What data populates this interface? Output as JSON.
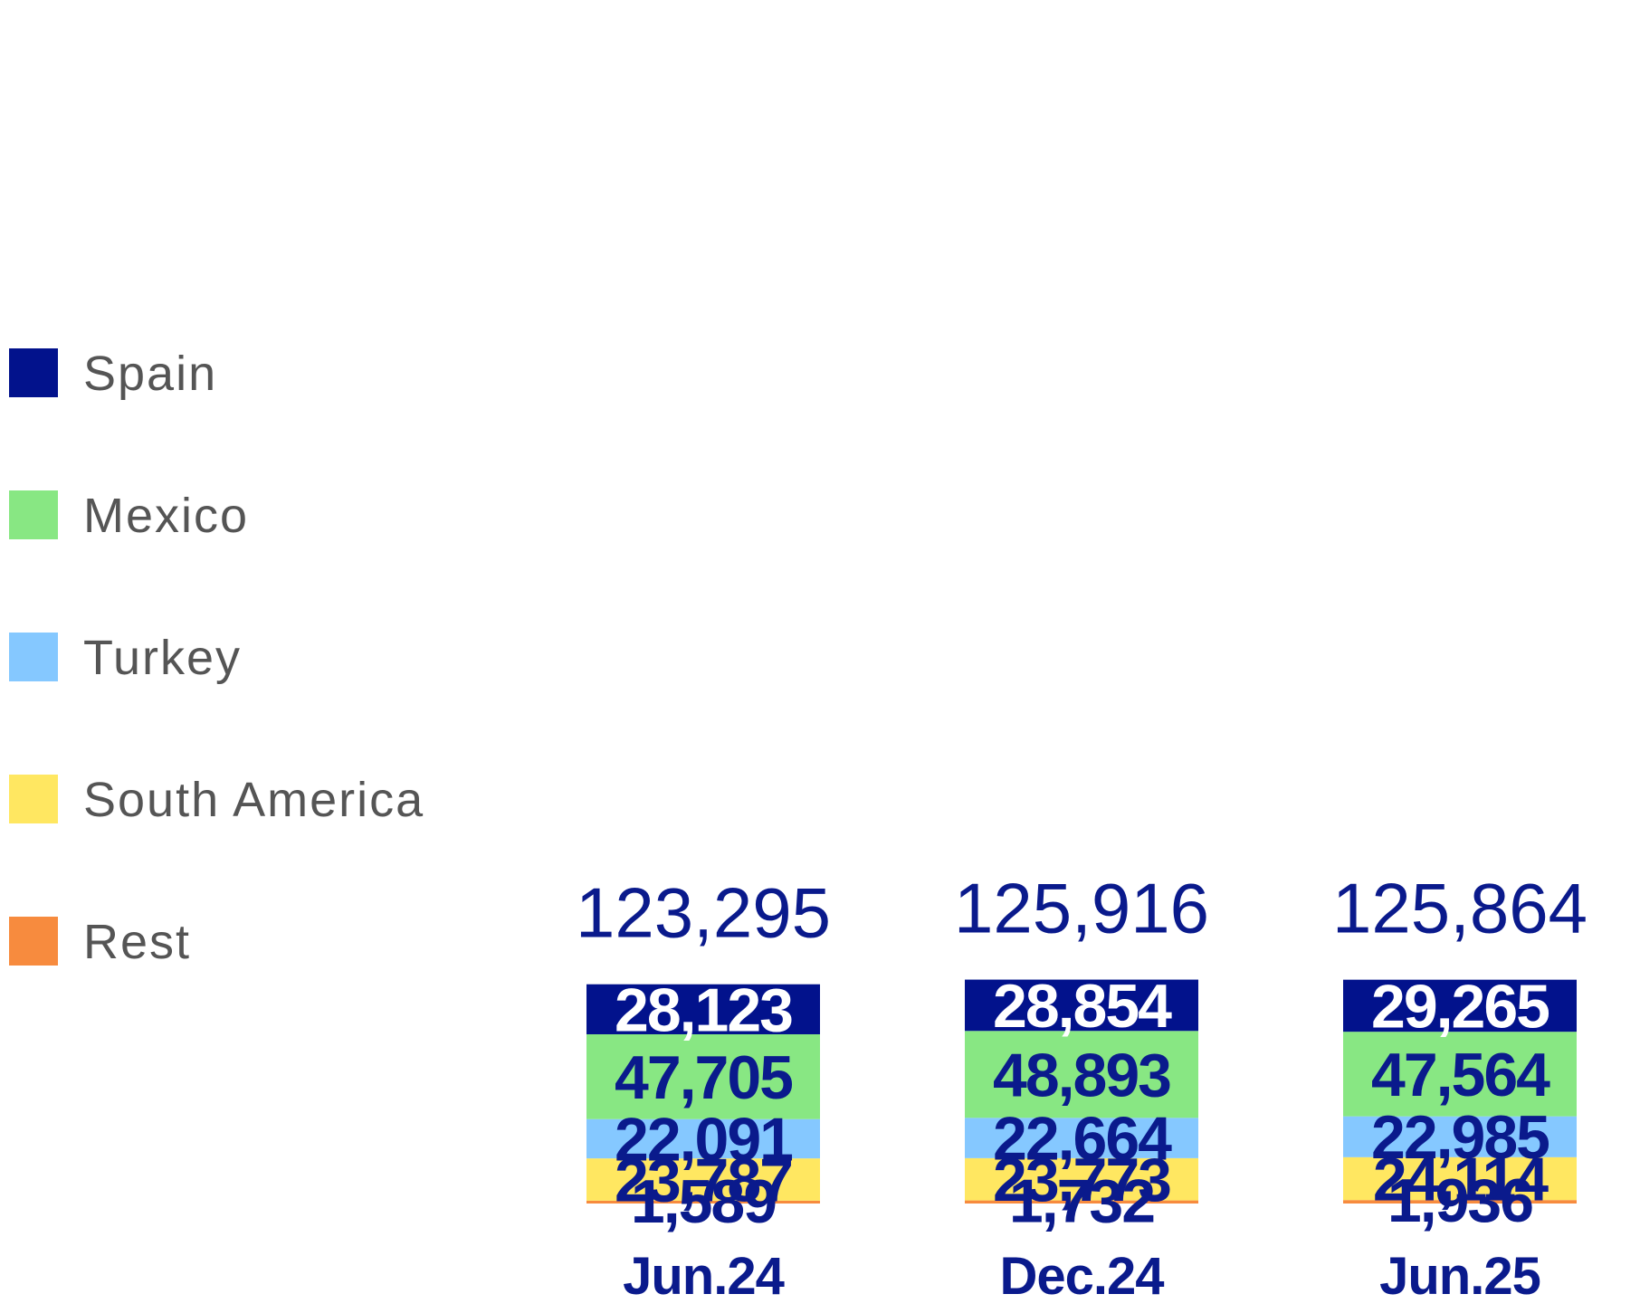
{
  "chart_data": {
    "type": "bar",
    "stacked": true,
    "categories": [
      "Jun.24",
      "Dec.24",
      "Jun.25"
    ],
    "totals": [
      "123,295",
      "125,916",
      "125,864"
    ],
    "series": [
      {
        "name": "Spain",
        "color": "#02128c",
        "label_color": "#ffffff",
        "values": [
          28123,
          28854,
          29265
        ],
        "labels": [
          "28,123",
          "28,854",
          "29,265"
        ]
      },
      {
        "name": "Mexico",
        "color": "#88e783",
        "label_color": "#0a1a8c",
        "values": [
          47705,
          48893,
          47564
        ],
        "labels": [
          "47,705",
          "48,893",
          "47,564"
        ]
      },
      {
        "name": "Turkey",
        "color": "#85c8ff",
        "label_color": "#0a1a8c",
        "values": [
          22091,
          22664,
          22985
        ],
        "labels": [
          "22,091",
          "22,664",
          "22,985"
        ]
      },
      {
        "name": "South America",
        "color": "#ffe761",
        "label_color": "#0a1a8c",
        "values": [
          23787,
          23773,
          24114
        ],
        "labels": [
          "23,787",
          "23,773",
          "24,114"
        ]
      },
      {
        "name": "Rest",
        "color": "#f78b3e",
        "label_color": "#0a1a8c",
        "values": [
          1589,
          1732,
          1936
        ],
        "labels": [
          "1,589",
          "1,732",
          "1,936"
        ]
      }
    ],
    "legend": "left"
  }
}
